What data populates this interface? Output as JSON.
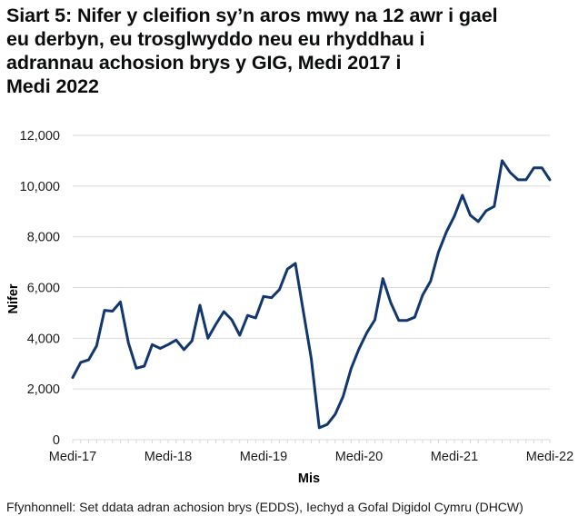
{
  "chart_data": {
    "type": "line",
    "title": "Siart 5: Nifer y cleifion sy’n aros mwy na 12 awr i gael eu derbyn, eu trosglwyddo neu eu rhyddhau i adrannau achosion brys y GIG, Medi 2017 i Medi 2022",
    "title_lines": [
      "Siart 5: Nifer y cleifion sy’n aros mwy na 12 awr i gael",
      "eu derbyn, eu trosglwyddo neu eu rhyddhau i",
      "adrannau achosion brys y GIG, Medi 2017 i",
      "Medi 2022"
    ],
    "xlabel": "Mis",
    "ylabel": "Nifer",
    "ylim": [
      0,
      12000
    ],
    "y_ticks": [
      0,
      2000,
      4000,
      6000,
      8000,
      10000,
      12000
    ],
    "y_tick_labels": [
      "0",
      "2,000",
      "4,000",
      "6,000",
      "8,000",
      "10,000",
      "12,000"
    ],
    "x_tick_labels": [
      "Medi-17",
      "Medi-18",
      "Medi-19",
      "Medi-20",
      "Medi-21",
      "Medi-22"
    ],
    "x_tick_label_months": [
      0,
      12,
      24,
      36,
      48,
      60
    ],
    "grid": true,
    "series": [
      {
        "name": "Nifer",
        "color": "#12376e",
        "x": [
          "2017-09",
          "2017-10",
          "2017-11",
          "2017-12",
          "2018-01",
          "2018-02",
          "2018-03",
          "2018-04",
          "2018-05",
          "2018-06",
          "2018-07",
          "2018-08",
          "2018-09",
          "2018-10",
          "2018-11",
          "2018-12",
          "2019-01",
          "2019-02",
          "2019-03",
          "2019-04",
          "2019-05",
          "2019-06",
          "2019-07",
          "2019-08",
          "2019-09",
          "2019-10",
          "2019-11",
          "2019-12",
          "2020-01",
          "2020-02",
          "2020-03",
          "2020-04",
          "2020-05",
          "2020-06",
          "2020-07",
          "2020-08",
          "2020-09",
          "2020-10",
          "2020-11",
          "2020-12",
          "2021-01",
          "2021-02",
          "2021-03",
          "2021-04",
          "2021-05",
          "2021-06",
          "2021-07",
          "2021-08",
          "2021-09",
          "2021-10",
          "2021-11",
          "2021-12",
          "2022-01",
          "2022-02",
          "2022-03",
          "2022-04",
          "2022-05",
          "2022-06",
          "2022-07",
          "2022-08",
          "2022-09"
        ],
        "values": [
          2450,
          3050,
          3150,
          3700,
          5100,
          5070,
          5430,
          3820,
          2820,
          2900,
          3750,
          3600,
          3750,
          3930,
          3550,
          3900,
          5300,
          4000,
          4550,
          5050,
          4730,
          4120,
          4900,
          4800,
          5650,
          5600,
          5920,
          6730,
          6950,
          5050,
          3200,
          470,
          600,
          1000,
          1700,
          2800,
          3580,
          4230,
          4730,
          6350,
          5400,
          4700,
          4700,
          4830,
          5700,
          6250,
          7400,
          8200,
          8820,
          9640,
          8850,
          8600,
          9030,
          9200,
          11000,
          10540,
          10250,
          10250,
          10720,
          10720,
          10250
        ]
      }
    ],
    "source": "Ffynhonnell: Set ddata adran achosion brys (EDDS), Iechyd a Gofal Digidol Cymru (DHCW)"
  }
}
